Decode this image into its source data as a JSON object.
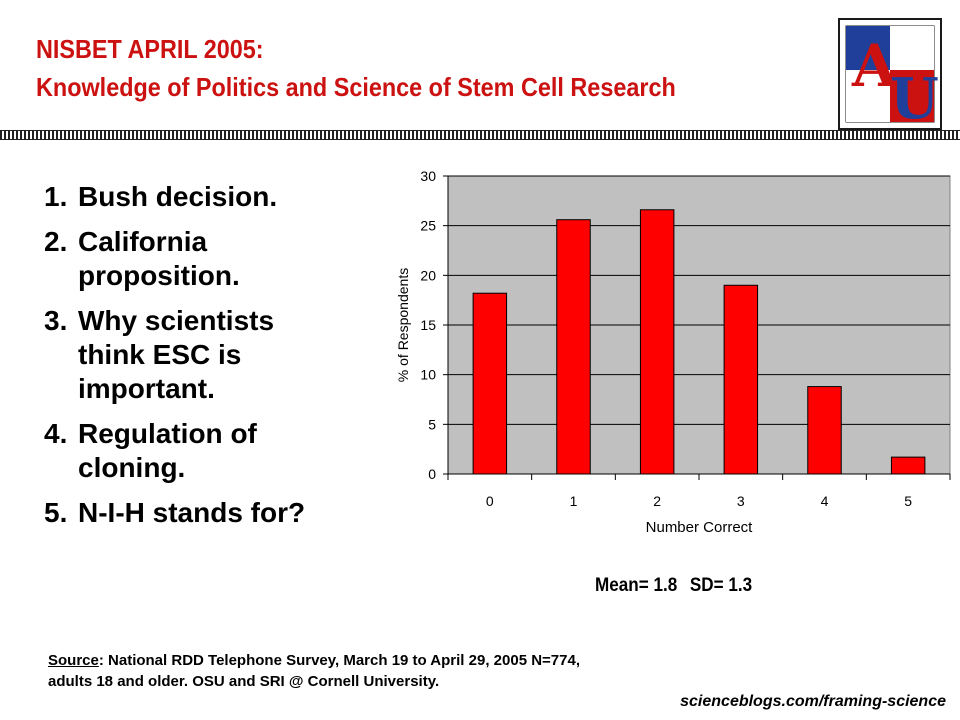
{
  "slide": {
    "title_line1": "NISBET APRIL 2005:",
    "title_line2": "Knowledge of Politics and Science of Stem Cell Research",
    "title_color": "#cc1111",
    "logo_letters": "AU",
    "questions": [
      {
        "num": "1.",
        "text": "Bush decision."
      },
      {
        "num": "2.",
        "text": "California proposition."
      },
      {
        "num": "3.",
        "text": "Why scientists think ESC is important."
      },
      {
        "num": "4.",
        "text": "Regulation of cloning."
      },
      {
        "num": "5.",
        "text": "N-I-H stands for?"
      }
    ],
    "stats": {
      "mean": "Mean= 1.8",
      "sd": "SD= 1.3"
    },
    "source_label": "Source",
    "source_text": ": National RDD Telephone Survey, March 19 to April 29, 2005   N=774, adults 18 and older. OSU and SRI @ Cornell University.",
    "url": "scienceblogs.com/framing-science"
  },
  "chart_data": {
    "type": "bar",
    "categories": [
      "0",
      "1",
      "2",
      "3",
      "4",
      "5"
    ],
    "values": [
      18.2,
      25.6,
      26.6,
      19.0,
      8.8,
      1.7
    ],
    "xlabel": "Number Correct",
    "ylabel": "% of Respondents",
    "ylim": [
      0,
      30
    ],
    "yticks": [
      0,
      5,
      10,
      15,
      20,
      25,
      30
    ],
    "grid": true,
    "legend": "none",
    "bar_color": "#ff0000",
    "plot_background": "#c0c0c0"
  }
}
